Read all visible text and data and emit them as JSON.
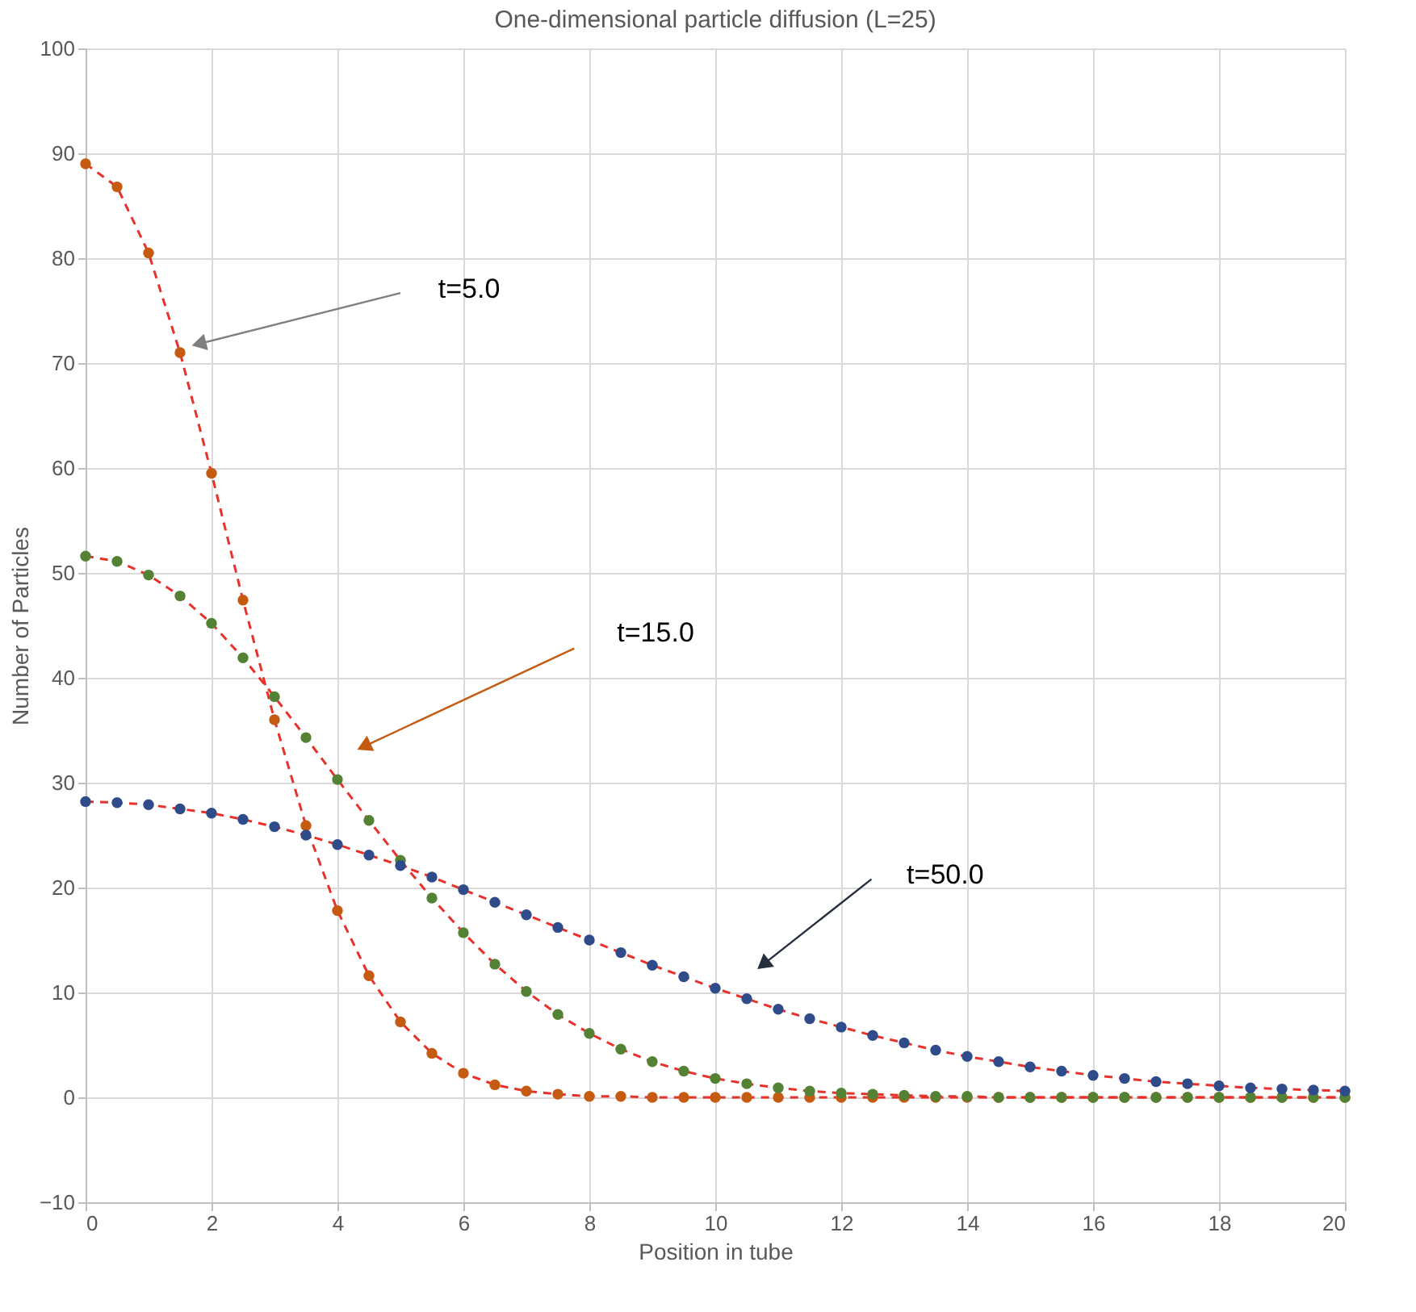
{
  "chart_data": {
    "type": "scatter",
    "title": "One-dimensional particle diffusion (L=25)",
    "xlabel": "Position in tube",
    "ylabel": "Number of Particles",
    "x": [
      0,
      0.5,
      1,
      1.5,
      2,
      2.5,
      3,
      3.5,
      4,
      4.5,
      5,
      5.5,
      6,
      6.5,
      7,
      7.5,
      8,
      8.5,
      9,
      9.5,
      10,
      10.5,
      11,
      11.5,
      12,
      12.5,
      13,
      13.5,
      14,
      14.5,
      15,
      15.5,
      16,
      16.5,
      17,
      17.5,
      18,
      18.5,
      19,
      19.5,
      20
    ],
    "series": [
      {
        "type": "line",
        "color": "#e8312a",
        "line_style": "dashed",
        "marker": "none",
        "values": [
          89,
          86.8,
          80.5,
          71,
          59.5,
          47.4,
          36,
          25.9,
          17.8,
          11.6,
          7.2,
          4.2,
          2.3,
          1.2,
          0.6,
          0.3,
          0.1,
          0.1,
          0,
          0,
          0,
          0,
          0,
          0,
          0,
          0,
          0,
          0,
          0,
          0,
          0,
          0,
          0,
          0,
          0,
          0,
          0,
          0,
          0,
          0,
          0
        ]
      },
      {
        "type": "line",
        "color": "#e8312a",
        "line_style": "dashed",
        "marker": "none",
        "values": [
          51.6,
          51.1,
          49.8,
          47.8,
          45.2,
          41.9,
          38.2,
          34.3,
          30.3,
          26.4,
          22.6,
          19.0,
          15.7,
          12.7,
          10.1,
          7.9,
          6.1,
          4.6,
          3.4,
          2.5,
          1.8,
          1.3,
          0.9,
          0.6,
          0.4,
          0.3,
          0.2,
          0.1,
          0.1,
          0,
          0,
          0,
          0,
          0,
          0,
          0,
          0,
          0,
          0,
          0,
          0
        ]
      },
      {
        "type": "line",
        "color": "#e8312a",
        "line_style": "dashed",
        "marker": "none",
        "values": [
          28.2,
          28.1,
          27.9,
          27.5,
          27.1,
          26.5,
          25.8,
          25.0,
          24.1,
          23.1,
          22.1,
          21.0,
          19.8,
          18.6,
          17.4,
          16.2,
          15.0,
          13.8,
          12.6,
          11.5,
          10.4,
          9.4,
          8.4,
          7.5,
          6.7,
          5.9,
          5.2,
          4.5,
          3.9,
          3.4,
          2.9,
          2.5,
          2.1,
          1.8,
          1.5,
          1.3,
          1.1,
          0.9,
          0.8,
          0.7,
          0.6
        ]
      },
      {
        "color": "#c55a11",
        "marker": "circle",
        "values": [
          89,
          86.8,
          80.5,
          71,
          59.5,
          47.4,
          36,
          25.9,
          17.8,
          11.6,
          7.2,
          4.2,
          2.3,
          1.2,
          0.6,
          0.3,
          0.1,
          0.1,
          0,
          0,
          0,
          0,
          0,
          0,
          0,
          0,
          0,
          0,
          0,
          0,
          0,
          0,
          0,
          0,
          0,
          0,
          0,
          0,
          0,
          0,
          0
        ]
      },
      {
        "color": "#548235",
        "marker": "circle",
        "values": [
          51.6,
          51.1,
          49.8,
          47.8,
          45.2,
          41.9,
          38.2,
          34.3,
          30.3,
          26.4,
          22.6,
          19.0,
          15.7,
          12.7,
          10.1,
          7.9,
          6.1,
          4.6,
          3.4,
          2.5,
          1.8,
          1.3,
          0.9,
          0.6,
          0.4,
          0.3,
          0.2,
          0.1,
          0.1,
          0,
          0,
          0,
          0,
          0,
          0,
          0,
          0,
          0,
          0,
          0,
          0
        ]
      },
      {
        "color": "#2f4b8a",
        "marker": "circle",
        "values": [
          28.2,
          28.1,
          27.9,
          27.5,
          27.1,
          26.5,
          25.8,
          25.0,
          24.1,
          23.1,
          22.1,
          21.0,
          19.8,
          18.6,
          17.4,
          16.2,
          15.0,
          13.8,
          12.6,
          11.5,
          10.4,
          9.4,
          8.4,
          7.5,
          6.7,
          5.9,
          5.2,
          4.5,
          3.9,
          3.4,
          2.9,
          2.5,
          2.1,
          1.8,
          1.5,
          1.3,
          1.1,
          0.9,
          0.8,
          0.7,
          0.6
        ]
      }
    ],
    "annotations": [
      "t=5.0",
      "t=15.0",
      "t=50.0"
    ],
    "xlim": [
      0,
      20
    ],
    "xticks": [
      0,
      2,
      4,
      6,
      8,
      10,
      12,
      14,
      16,
      18,
      20
    ],
    "ylim": [
      -10,
      100
    ],
    "yticks": [
      -10,
      0,
      10,
      20,
      30,
      40,
      50,
      60,
      70,
      80,
      90,
      100
    ],
    "grid": true
  }
}
